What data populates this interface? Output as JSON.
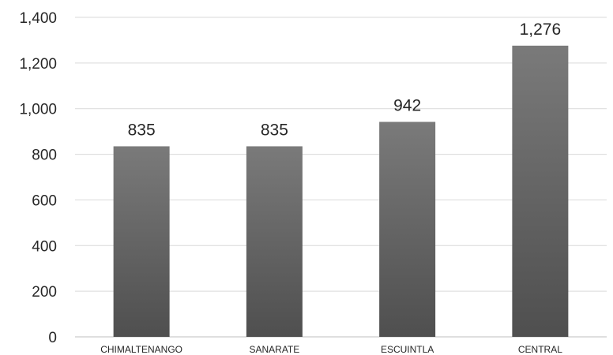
{
  "chart_data": {
    "type": "bar",
    "title": "",
    "xlabel": "",
    "ylabel": "",
    "categories": [
      "CHIMALTENANGO",
      "SANARATE",
      "ESCUINTLA",
      "CENTRAL"
    ],
    "values": [
      835,
      835,
      942,
      1276
    ],
    "data_labels": [
      "835",
      "835",
      "942",
      "1,276"
    ],
    "ylim": [
      0,
      1400
    ],
    "yticks": [
      0,
      200,
      400,
      600,
      800,
      1000,
      1200,
      1400
    ],
    "ytick_labels": [
      "0",
      "200",
      "400",
      "600",
      "800",
      "1,000",
      "1,200",
      "1,400"
    ],
    "grid": true,
    "legend": "none",
    "colors": {
      "bar_top": "#7a7a7a",
      "bar_bottom": "#4f4f4f",
      "grid": "#d9d9d9",
      "text": "#262626"
    }
  }
}
